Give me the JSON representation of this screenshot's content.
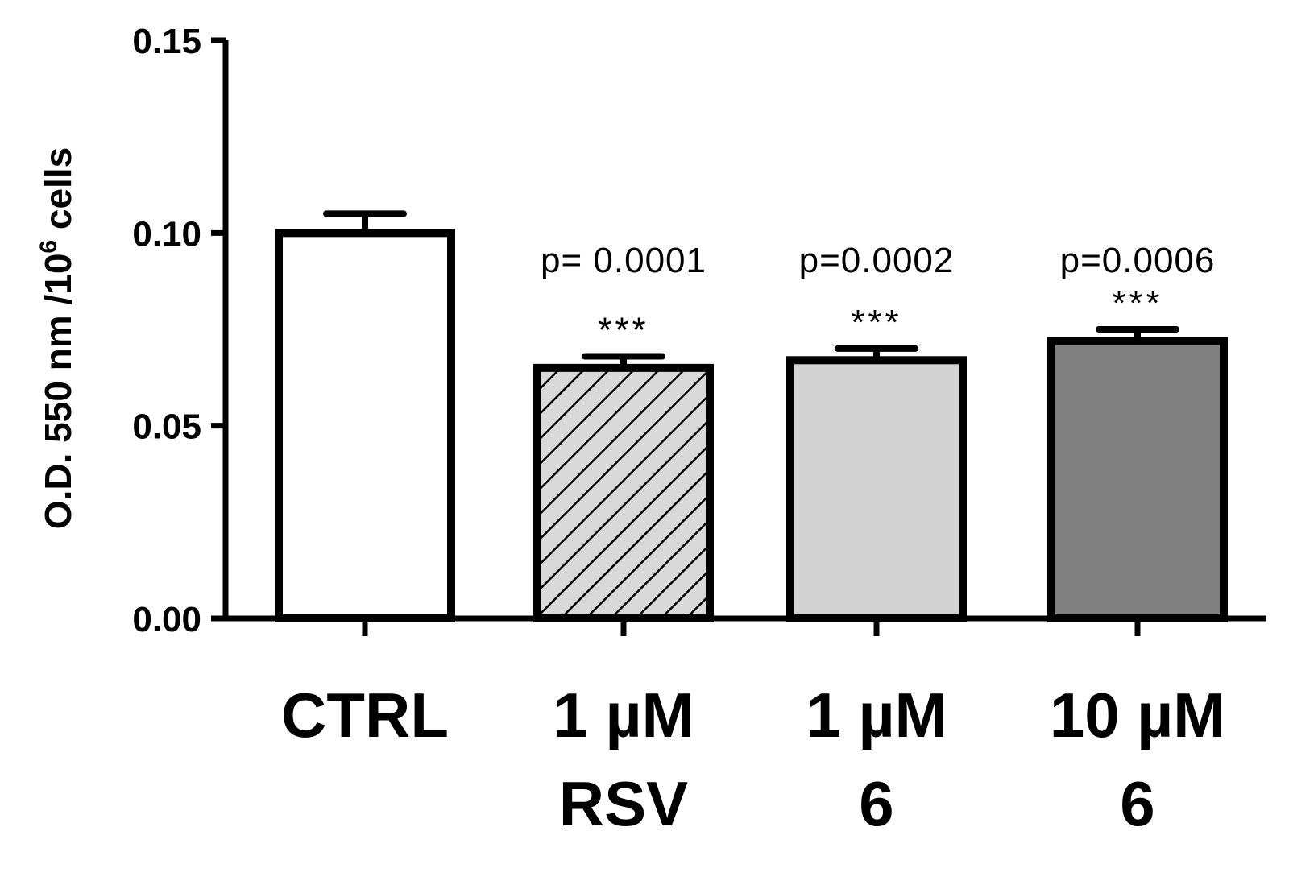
{
  "chart_data": {
    "type": "bar",
    "title": "",
    "xlabel": "",
    "ylabel": {
      "prefix": "O.D. 550 nm /10",
      "superscript": "6",
      "suffix": " cells"
    },
    "ylim": [
      0,
      0.15
    ],
    "yticks": [
      "0.00",
      "0.05",
      "0.10",
      "0.15"
    ],
    "ytick_values": [
      0,
      0.05,
      0.1,
      0.15
    ],
    "categories": [
      {
        "line1": "CTRL",
        "line2": ""
      },
      {
        "line1": "1 µM",
        "line2": "RSV"
      },
      {
        "line1": "1 µM",
        "line2": "6"
      },
      {
        "line1": "10 µM",
        "line2": "6"
      }
    ],
    "values": [
      0.1,
      0.065,
      0.067,
      0.072
    ],
    "errors": [
      0.005,
      0.003,
      0.003,
      0.003
    ],
    "fills": [
      {
        "pattern": "none",
        "color": "#ffffff"
      },
      {
        "pattern": "diagonal-hatch",
        "color": "#d9d9d9"
      },
      {
        "pattern": "none",
        "color": "#d3d3d3"
      },
      {
        "pattern": "none",
        "color": "#808080"
      }
    ],
    "annotations": [
      {
        "category": 1,
        "pvalue": "p= 0.0001",
        "stars": "***"
      },
      {
        "category": 2,
        "pvalue": "p=0.0002",
        "stars": "***"
      },
      {
        "category": 3,
        "pvalue": "p=0.0006",
        "stars": "***"
      }
    ],
    "grid": false,
    "legend": "none"
  }
}
